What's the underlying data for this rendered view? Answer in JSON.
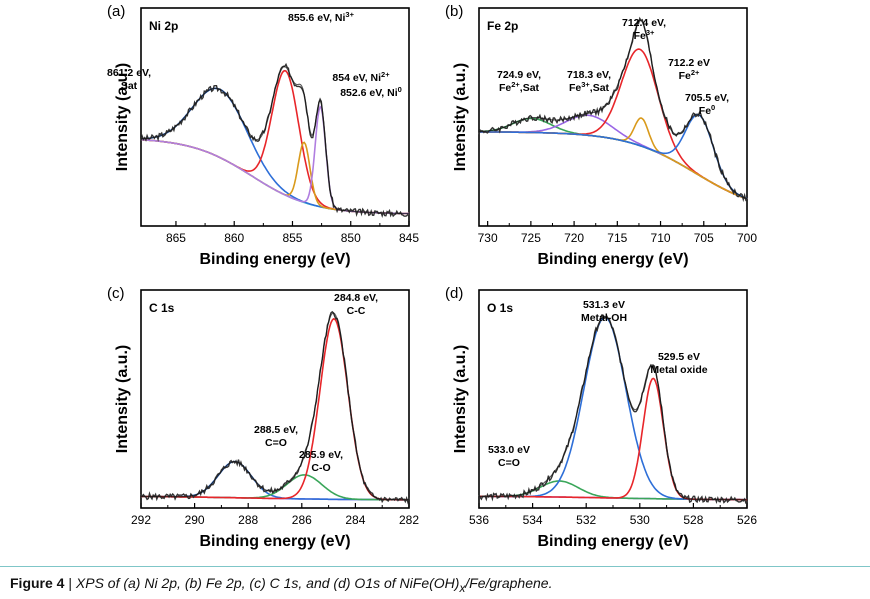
{
  "figure": {
    "caption_label": "Figure 4",
    "caption_sep": " | ",
    "caption_pre": "XPS of (a) Ni 2p, (b) Fe 2p, (c) C 1s, and (d) O1s of NiFe(OH)",
    "caption_sub": "x",
    "caption_post": "/Fe/graphene."
  },
  "colors": {
    "raw": "#333333",
    "envelope": "#111111",
    "background": "#33c4c4",
    "red": "#e8262a",
    "blue": "#2e6fd8",
    "orange": "#d99a1c",
    "purple": "#b07ee0",
    "green": "#3aa65a",
    "brown": "#8a5a3c",
    "violet": "#9a66e6",
    "rule": "#7fc6c8"
  },
  "chart_data": [
    {
      "id": "a",
      "panel_label": "(a)",
      "title": "Ni 2p",
      "type": "line",
      "xlabel": "Binding energy (eV)",
      "ylabel": "Intensity (a.u.)",
      "xlim": [
        868,
        845
      ],
      "ylim": [
        0,
        1.0
      ],
      "xticks": [
        865,
        860,
        855,
        850,
        845
      ],
      "background": {
        "color": "background",
        "low": 0.04,
        "high": 0.42,
        "center": 858.5,
        "width": 2.6
      },
      "peaks": [
        {
          "center": 861.2,
          "height": 0.34,
          "width": 2.3,
          "color": "blue"
        },
        {
          "center": 855.6,
          "height": 0.62,
          "width": 1.15,
          "color": "red"
        },
        {
          "center": 854.0,
          "height": 0.3,
          "width": 0.5,
          "color": "orange"
        },
        {
          "center": 852.6,
          "height": 0.5,
          "width": 0.45,
          "color": "purple"
        }
      ],
      "annotations": [
        {
          "text": "861.2 eV,",
          "text2": "Sat",
          "x": 861.2
        },
        {
          "text": "855.6 eV, Ni",
          "sup": "3+",
          "x": 855.6
        },
        {
          "text": "854 eV, Ni",
          "sup": "2+",
          "x": 854.0
        },
        {
          "text": "852.6 eV, Ni",
          "sup": "0",
          "x": 852.6
        }
      ]
    },
    {
      "id": "b",
      "panel_label": "(b)",
      "title": "Fe 2p",
      "type": "line",
      "xlabel": "Binding energy (eV)",
      "ylabel": "Intensity (a.u.)",
      "xlim": [
        731,
        700
      ],
      "ylim": [
        0,
        1.0
      ],
      "xticks": [
        730,
        725,
        720,
        715,
        710,
        705,
        700
      ],
      "background": {
        "color": "brown",
        "low": 0.04,
        "high": 0.45,
        "center": 706.0,
        "width": 4.0
      },
      "peaks": [
        {
          "center": 724.9,
          "height": 0.07,
          "width": 2.2,
          "color": "green"
        },
        {
          "center": 718.3,
          "height": 0.1,
          "width": 2.6,
          "color": "violet"
        },
        {
          "center": 712.4,
          "height": 0.48,
          "width": 2.1,
          "color": "red"
        },
        {
          "center": 712.2,
          "height": 0.14,
          "width": 0.8,
          "color": "orange"
        },
        {
          "center": 705.5,
          "height": 0.3,
          "width": 1.6,
          "color": "blue"
        }
      ],
      "annotations": [
        {
          "text": "724.9 eV,",
          "text2": "Fe",
          "sup2": "2+",
          "text3": ",Sat",
          "x": 724.9
        },
        {
          "text": "718.3 eV,",
          "text2": "Fe",
          "sup2": "3+",
          "text3": ",Sat",
          "x": 718.3
        },
        {
          "text": "712.4 eV,",
          "text2": "Fe",
          "sup2": "3+",
          "x": 712.4
        },
        {
          "text": "712.2 eV",
          "text2": "Fe",
          "sup2": "2+",
          "x": 712.2
        },
        {
          "text": "705.5 eV,",
          "text2": "Fe",
          "sup2": "0",
          "x": 705.5
        }
      ]
    },
    {
      "id": "c",
      "panel_label": "(c)",
      "title": "C 1s",
      "type": "line",
      "xlabel": "Binding energy (eV)",
      "ylabel": "Intensity (a.u.)",
      "xlim": [
        292,
        282
      ],
      "ylim": [
        0,
        1.0
      ],
      "xticks": [
        292,
        290,
        288,
        286,
        284,
        282
      ],
      "background": {
        "color": "violet",
        "low": 0.02,
        "high": 0.04,
        "center": 288,
        "width": 2.0
      },
      "peaks": [
        {
          "center": 288.5,
          "height": 0.18,
          "width": 0.62,
          "color": "blue"
        },
        {
          "center": 285.9,
          "height": 0.12,
          "width": 0.65,
          "color": "green"
        },
        {
          "center": 284.8,
          "height": 0.9,
          "width": 0.52,
          "color": "red"
        }
      ],
      "annotations": [
        {
          "text": "288.5 eV,",
          "text2": "C=O",
          "x": 288.5
        },
        {
          "text": "285.9 eV,",
          "text2": "C-O",
          "x": 285.9
        },
        {
          "text": "284.8 eV,",
          "text2": "C-C",
          "x": 284.8
        }
      ]
    },
    {
      "id": "d",
      "panel_label": "(d)",
      "title": "O 1s",
      "type": "line",
      "xlabel": "Binding energy (eV)",
      "ylabel": "Intensity (a.u.)",
      "xlim": [
        536,
        526
      ],
      "ylim": [
        0,
        1.0
      ],
      "xticks": [
        536,
        534,
        532,
        530,
        528,
        526
      ],
      "background": {
        "color": "violet",
        "low": 0.02,
        "high": 0.04,
        "center": 531,
        "width": 2.0
      },
      "peaks": [
        {
          "center": 533.0,
          "height": 0.08,
          "width": 0.7,
          "color": "green"
        },
        {
          "center": 531.3,
          "height": 0.9,
          "width": 0.78,
          "color": "blue"
        },
        {
          "center": 529.5,
          "height": 0.6,
          "width": 0.38,
          "color": "red"
        }
      ],
      "annotations": [
        {
          "text": "533.0 eV",
          "text2": "C=O",
          "x": 533.0
        },
        {
          "text": "531.3 eV",
          "text2": "Metal-OH",
          "x": 531.3
        },
        {
          "text": "529.5 eV",
          "text2": "Metal oxide",
          "x": 529.5
        }
      ]
    }
  ]
}
